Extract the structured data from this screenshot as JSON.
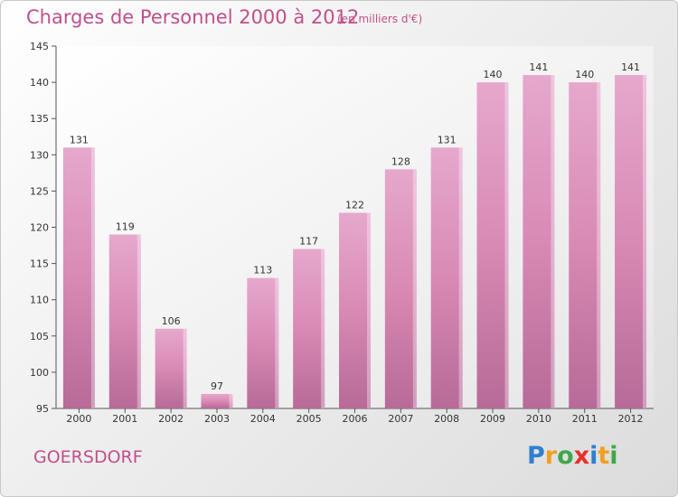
{
  "header": {
    "title": "Charges de Personnel 2000 à 2012",
    "subtitle": "(en milliers d'€)"
  },
  "footer": {
    "place": "GOERSDORF",
    "logo": {
      "letters": [
        "P",
        "r",
        "o",
        "x",
        "i",
        "t",
        "i"
      ],
      "colors": [
        "#2f7fd0",
        "#f0a020",
        "#3fa84a",
        "#e8302a",
        "#2f7fd0",
        "#f0a020",
        "#3fa84a"
      ]
    }
  },
  "chart_data": {
    "type": "bar",
    "title": "Charges de Personnel 2000 à 2012",
    "subtitle": "(en milliers d'€)",
    "categories": [
      "2000",
      "2001",
      "2002",
      "2003",
      "2004",
      "2005",
      "2006",
      "2007",
      "2008",
      "2009",
      "2010",
      "2011",
      "2012"
    ],
    "values": [
      131,
      119,
      106,
      97,
      113,
      117,
      122,
      128,
      131,
      140,
      141,
      140,
      141
    ],
    "data_labels": [
      "131",
      "119",
      "106",
      "97",
      "113",
      "117",
      "122",
      "128",
      "131",
      "140",
      "141",
      "140",
      "141"
    ],
    "yticks": [
      95,
      100,
      105,
      110,
      115,
      120,
      125,
      130,
      135,
      140,
      145
    ],
    "ylim": [
      95,
      145
    ],
    "grid": false,
    "bar_color": "#d88ab4",
    "bar_color_top": "#e6a8cc",
    "bar_color_bottom": "#b86a98"
  }
}
